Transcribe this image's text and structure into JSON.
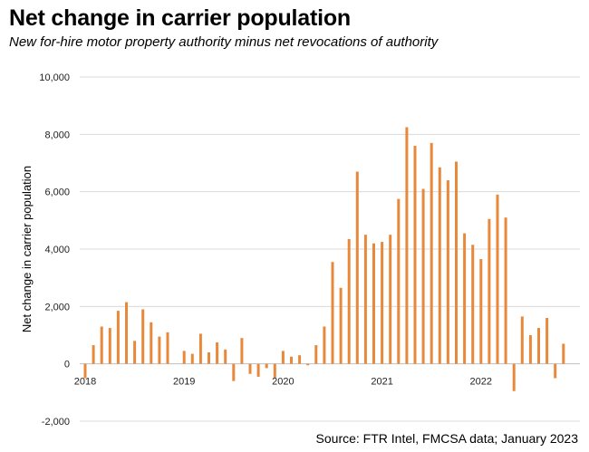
{
  "title": "Net change in carrier population",
  "subtitle": "New for-hire motor property authority minus net revocations of authority",
  "source": "Source: FTR Intel, FMCSA data; January 2023",
  "colors": {
    "bar": "#E8883A",
    "grid": "#d9d9d9",
    "baseline": "#bfbfbf"
  },
  "chart_data": {
    "type": "bar",
    "title": "Net change in carrier population",
    "subtitle": "New for-hire motor property authority minus net revocations of authority",
    "ylabel": "Net change in carrier population",
    "xlabel": "",
    "ylim": [
      -2000,
      10000
    ],
    "yticks": [
      -2000,
      0,
      2000,
      4000,
      6000,
      8000,
      10000
    ],
    "ytick_labels": [
      "-2,000",
      "0",
      "2,000",
      "4,000",
      "6,000",
      "8,000",
      "10,000"
    ],
    "xtick_labels": [
      "2018",
      "2019",
      "2020",
      "2021",
      "2022"
    ],
    "xtick_months": [
      "2018-01",
      "2019-01",
      "2020-01",
      "2021-01",
      "2022-01"
    ],
    "grid": true,
    "categories": [
      "2018-01",
      "2018-02",
      "2018-03",
      "2018-04",
      "2018-05",
      "2018-06",
      "2018-07",
      "2018-08",
      "2018-09",
      "2018-10",
      "2018-11",
      "2018-12",
      "2019-01",
      "2019-02",
      "2019-03",
      "2019-04",
      "2019-05",
      "2019-06",
      "2019-07",
      "2019-08",
      "2019-09",
      "2019-10",
      "2019-11",
      "2019-12",
      "2020-01",
      "2020-02",
      "2020-03",
      "2020-04",
      "2020-05",
      "2020-06",
      "2020-07",
      "2020-08",
      "2020-09",
      "2020-10",
      "2020-11",
      "2020-12",
      "2021-01",
      "2021-02",
      "2021-03",
      "2021-04",
      "2021-05",
      "2021-06",
      "2021-07",
      "2021-08",
      "2021-09",
      "2021-10",
      "2021-11",
      "2021-12",
      "2022-01",
      "2022-02",
      "2022-03",
      "2022-04",
      "2022-05",
      "2022-06",
      "2022-07",
      "2022-08",
      "2022-09",
      "2022-10",
      "2022-11",
      "2022-12"
    ],
    "values": [
      -500,
      650,
      1300,
      1250,
      1850,
      2150,
      800,
      1900,
      1450,
      950,
      1100,
      0,
      450,
      350,
      1050,
      400,
      750,
      500,
      -600,
      900,
      -350,
      -450,
      -150,
      -500,
      450,
      250,
      300,
      -50,
      650,
      1300,
      3550,
      2650,
      4350,
      6700,
      4500,
      4200,
      4250,
      4500,
      5750,
      8250,
      7600,
      6100,
      7700,
      6850,
      6400,
      7050,
      4550,
      4150,
      3650,
      5050,
      5900,
      5100,
      -950,
      1650,
      1000,
      1250,
      1600,
      -500,
      700,
      0
    ]
  }
}
